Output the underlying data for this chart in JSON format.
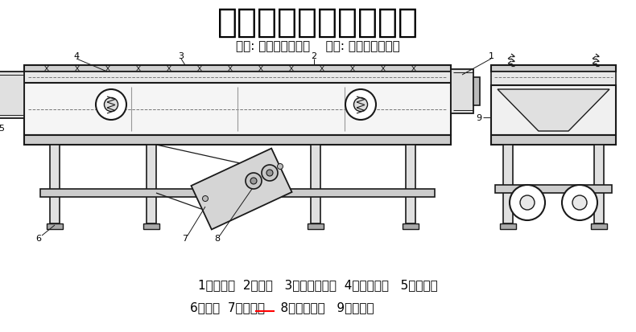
{
  "title": "外形结构图及技术参数",
  "subtitle": "诚信: 为自己创造价值    责任: 为用户创造价值",
  "legend_line1": "1、进料口  2、筛箱   3、密封防尘盖  4、隔振弹簧   5、出料口",
  "legend_line2": "6、支架  7、电机板    8、振动电机   9、筛网架",
  "bg_color": "#ffffff",
  "title_color": "#000000",
  "title_fontsize": 30,
  "subtitle_fontsize": 11,
  "legend_fontsize": 11,
  "line_color": "#1a1a1a",
  "fig_width": 7.9,
  "fig_height": 4.14,
  "dpi": 100
}
